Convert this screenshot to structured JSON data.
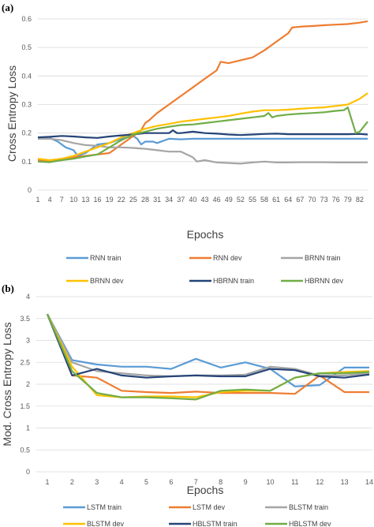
{
  "chart_data": [
    {
      "panel_label": "(a)",
      "type": "line",
      "xlabel": "Epochs",
      "ylabel": "Cross Entropy Loss",
      "xlim": [
        1,
        84
      ],
      "ylim": [
        0,
        0.6
      ],
      "yticks": [
        "0",
        "0.1",
        "0.2",
        "0.3",
        "0.4",
        "0.5",
        "0.6"
      ],
      "xtick_values": [
        1,
        4,
        7,
        10,
        13,
        16,
        19,
        22,
        25,
        28,
        31,
        34,
        37,
        40,
        43,
        46,
        49,
        52,
        55,
        58,
        61,
        64,
        67,
        70,
        73,
        76,
        79,
        82
      ],
      "grid": true,
      "legend_position": "bottom",
      "series": [
        {
          "name": "RNN train",
          "color": "#5b9bd5",
          "x": [
            1,
            4,
            6,
            8,
            10,
            11,
            13,
            16,
            19,
            22,
            25,
            26,
            27,
            28,
            30,
            31,
            34,
            37,
            40,
            43,
            46,
            49,
            52,
            55,
            58,
            61,
            64,
            67,
            70,
            73,
            76,
            79,
            82,
            84
          ],
          "y": [
            0.185,
            0.183,
            0.17,
            0.15,
            0.14,
            0.12,
            0.13,
            0.16,
            0.165,
            0.18,
            0.19,
            0.18,
            0.16,
            0.17,
            0.17,
            0.165,
            0.18,
            0.178,
            0.18,
            0.18,
            0.18,
            0.18,
            0.18,
            0.18,
            0.18,
            0.18,
            0.18,
            0.18,
            0.18,
            0.18,
            0.18,
            0.18,
            0.18,
            0.18
          ]
        },
        {
          "name": "RNN dev",
          "color": "#ed7d31",
          "x": [
            1,
            4,
            7,
            10,
            13,
            16,
            19,
            22,
            25,
            27,
            28,
            29,
            31,
            34,
            37,
            40,
            43,
            46,
            47,
            49,
            52,
            55,
            58,
            61,
            64,
            65,
            67,
            70,
            73,
            76,
            79,
            82,
            84
          ],
          "y": [
            0.105,
            0.103,
            0.11,
            0.115,
            0.12,
            0.125,
            0.13,
            0.16,
            0.19,
            0.21,
            0.235,
            0.245,
            0.27,
            0.3,
            0.33,
            0.36,
            0.39,
            0.42,
            0.45,
            0.445,
            0.455,
            0.465,
            0.49,
            0.52,
            0.55,
            0.57,
            0.573,
            0.575,
            0.578,
            0.58,
            0.582,
            0.587,
            0.592
          ]
        },
        {
          "name": "BRNN train",
          "color": "#a5a5a5",
          "x": [
            1,
            4,
            7,
            10,
            13,
            16,
            19,
            22,
            25,
            28,
            31,
            34,
            37,
            40,
            41,
            43,
            46,
            49,
            52,
            55,
            58,
            61,
            64,
            67,
            70,
            73,
            76,
            79,
            82,
            84
          ],
          "y": [
            0.18,
            0.18,
            0.175,
            0.165,
            0.158,
            0.155,
            0.15,
            0.15,
            0.148,
            0.145,
            0.14,
            0.135,
            0.135,
            0.115,
            0.1,
            0.105,
            0.097,
            0.095,
            0.093,
            0.097,
            0.1,
            0.097,
            0.097,
            0.098,
            0.098,
            0.098,
            0.097,
            0.097,
            0.097,
            0.097
          ]
        },
        {
          "name": "BRNN dev",
          "color": "#ffc000",
          "x": [
            1,
            4,
            7,
            10,
            13,
            16,
            19,
            22,
            25,
            28,
            31,
            34,
            37,
            40,
            43,
            46,
            49,
            52,
            55,
            58,
            61,
            64,
            67,
            70,
            73,
            76,
            79,
            82,
            84
          ],
          "y": [
            0.11,
            0.105,
            0.11,
            0.12,
            0.135,
            0.15,
            0.165,
            0.185,
            0.2,
            0.215,
            0.225,
            0.232,
            0.24,
            0.245,
            0.25,
            0.255,
            0.26,
            0.268,
            0.275,
            0.28,
            0.28,
            0.282,
            0.285,
            0.288,
            0.29,
            0.295,
            0.3,
            0.32,
            0.34
          ]
        },
        {
          "name": "HBRNN train",
          "color": "#264478",
          "x": [
            1,
            4,
            7,
            10,
            13,
            16,
            19,
            22,
            25,
            28,
            31,
            34,
            35,
            36,
            37,
            40,
            43,
            46,
            49,
            52,
            55,
            58,
            61,
            64,
            67,
            70,
            73,
            76,
            79,
            82,
            84
          ],
          "y": [
            0.185,
            0.187,
            0.19,
            0.188,
            0.185,
            0.183,
            0.188,
            0.192,
            0.195,
            0.2,
            0.2,
            0.2,
            0.21,
            0.2,
            0.2,
            0.205,
            0.2,
            0.198,
            0.195,
            0.193,
            0.195,
            0.197,
            0.198,
            0.196,
            0.196,
            0.196,
            0.196,
            0.196,
            0.196,
            0.197,
            0.195
          ]
        },
        {
          "name": "HBRNN dev",
          "color": "#70ad47",
          "x": [
            1,
            4,
            7,
            10,
            13,
            16,
            19,
            22,
            25,
            28,
            31,
            34,
            37,
            40,
            43,
            46,
            49,
            52,
            55,
            58,
            59,
            60,
            61,
            64,
            67,
            70,
            73,
            76,
            78,
            79,
            81,
            82,
            84
          ],
          "y": [
            0.1,
            0.098,
            0.105,
            0.11,
            0.118,
            0.125,
            0.15,
            0.175,
            0.195,
            0.205,
            0.215,
            0.222,
            0.228,
            0.23,
            0.235,
            0.24,
            0.245,
            0.25,
            0.255,
            0.26,
            0.27,
            0.255,
            0.26,
            0.265,
            0.268,
            0.27,
            0.273,
            0.278,
            0.28,
            0.29,
            0.2,
            0.205,
            0.24
          ]
        }
      ]
    },
    {
      "panel_label": "(b)",
      "type": "line",
      "xlabel": "Epochs",
      "ylabel": "Mod. Cross Entropy Loss",
      "categories": [
        "1",
        "2",
        "3",
        "4",
        "5",
        "6",
        "7",
        "8",
        "9",
        "10",
        "11",
        "12",
        "13",
        "14"
      ],
      "ylim": [
        0,
        4
      ],
      "yticks": [
        "0",
        "0.5",
        "1",
        "1.5",
        "2",
        "2.5",
        "3",
        "3.5",
        "4"
      ],
      "grid": true,
      "legend_position": "bottom",
      "series": [
        {
          "name": "LSTM train",
          "color": "#5b9bd5",
          "values": [
            3.6,
            2.55,
            2.45,
            2.4,
            2.4,
            2.35,
            2.58,
            2.38,
            2.5,
            2.35,
            1.95,
            1.98,
            2.38,
            2.38
          ]
        },
        {
          "name": "LSTM dev",
          "color": "#ed7d31",
          "values": [
            3.6,
            2.2,
            2.15,
            1.85,
            1.82,
            1.8,
            1.83,
            1.8,
            1.8,
            1.8,
            1.78,
            2.2,
            1.82,
            1.82
          ]
        },
        {
          "name": "BLSTM train",
          "color": "#a5a5a5",
          "values": [
            3.6,
            2.5,
            2.3,
            2.25,
            2.2,
            2.18,
            2.2,
            2.2,
            2.22,
            2.4,
            2.35,
            2.2,
            2.2,
            2.25
          ]
        },
        {
          "name": "BLSTM dev",
          "color": "#ffc000",
          "values": [
            3.6,
            2.4,
            1.75,
            1.7,
            1.72,
            1.72,
            1.7,
            1.82,
            1.85,
            1.85,
            2.15,
            2.25,
            2.28,
            2.3
          ]
        },
        {
          "name": "HBLSTM train",
          "color": "#264478",
          "values": [
            3.6,
            2.2,
            2.35,
            2.2,
            2.15,
            2.18,
            2.2,
            2.18,
            2.18,
            2.35,
            2.32,
            2.18,
            2.15,
            2.22
          ]
        },
        {
          "name": "HBLSTM dev",
          "color": "#70ad47",
          "values": [
            3.6,
            2.3,
            1.8,
            1.7,
            1.7,
            1.68,
            1.65,
            1.85,
            1.88,
            1.85,
            2.15,
            2.25,
            2.25,
            2.28
          ]
        }
      ]
    }
  ]
}
